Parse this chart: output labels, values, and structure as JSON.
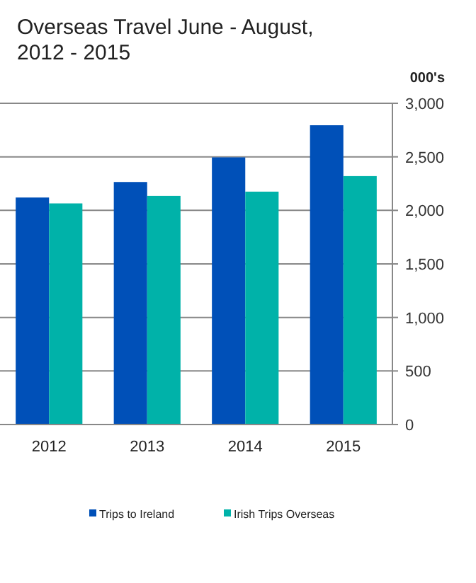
{
  "chart_data": {
    "type": "bar",
    "title": "Overseas Travel June - August,\n2012 - 2015",
    "ylabel": "000's",
    "categories": [
      "2012",
      "2013",
      "2014",
      "2015"
    ],
    "series": [
      {
        "name": "Trips to Ireland",
        "color": "#0050b8",
        "values": [
          2120,
          2265,
          2495,
          2795
        ]
      },
      {
        "name": "Irish Trips Overseas",
        "color": "#00b2a9",
        "values": [
          2065,
          2135,
          2175,
          2320
        ]
      }
    ],
    "ylim": [
      0,
      3000
    ],
    "yticks": [
      0,
      {
        "value": 500,
        "label": "500"
      },
      {
        "value": 1000,
        "label": "1,000"
      },
      {
        "value": 1500,
        "label": "1,500"
      },
      {
        "value": 2000,
        "label": "2,000"
      },
      {
        "value": 2500,
        "label": "2,500"
      },
      {
        "value": 3000,
        "label": "3,000"
      }
    ],
    "grid": "y",
    "legend": "bottom"
  }
}
